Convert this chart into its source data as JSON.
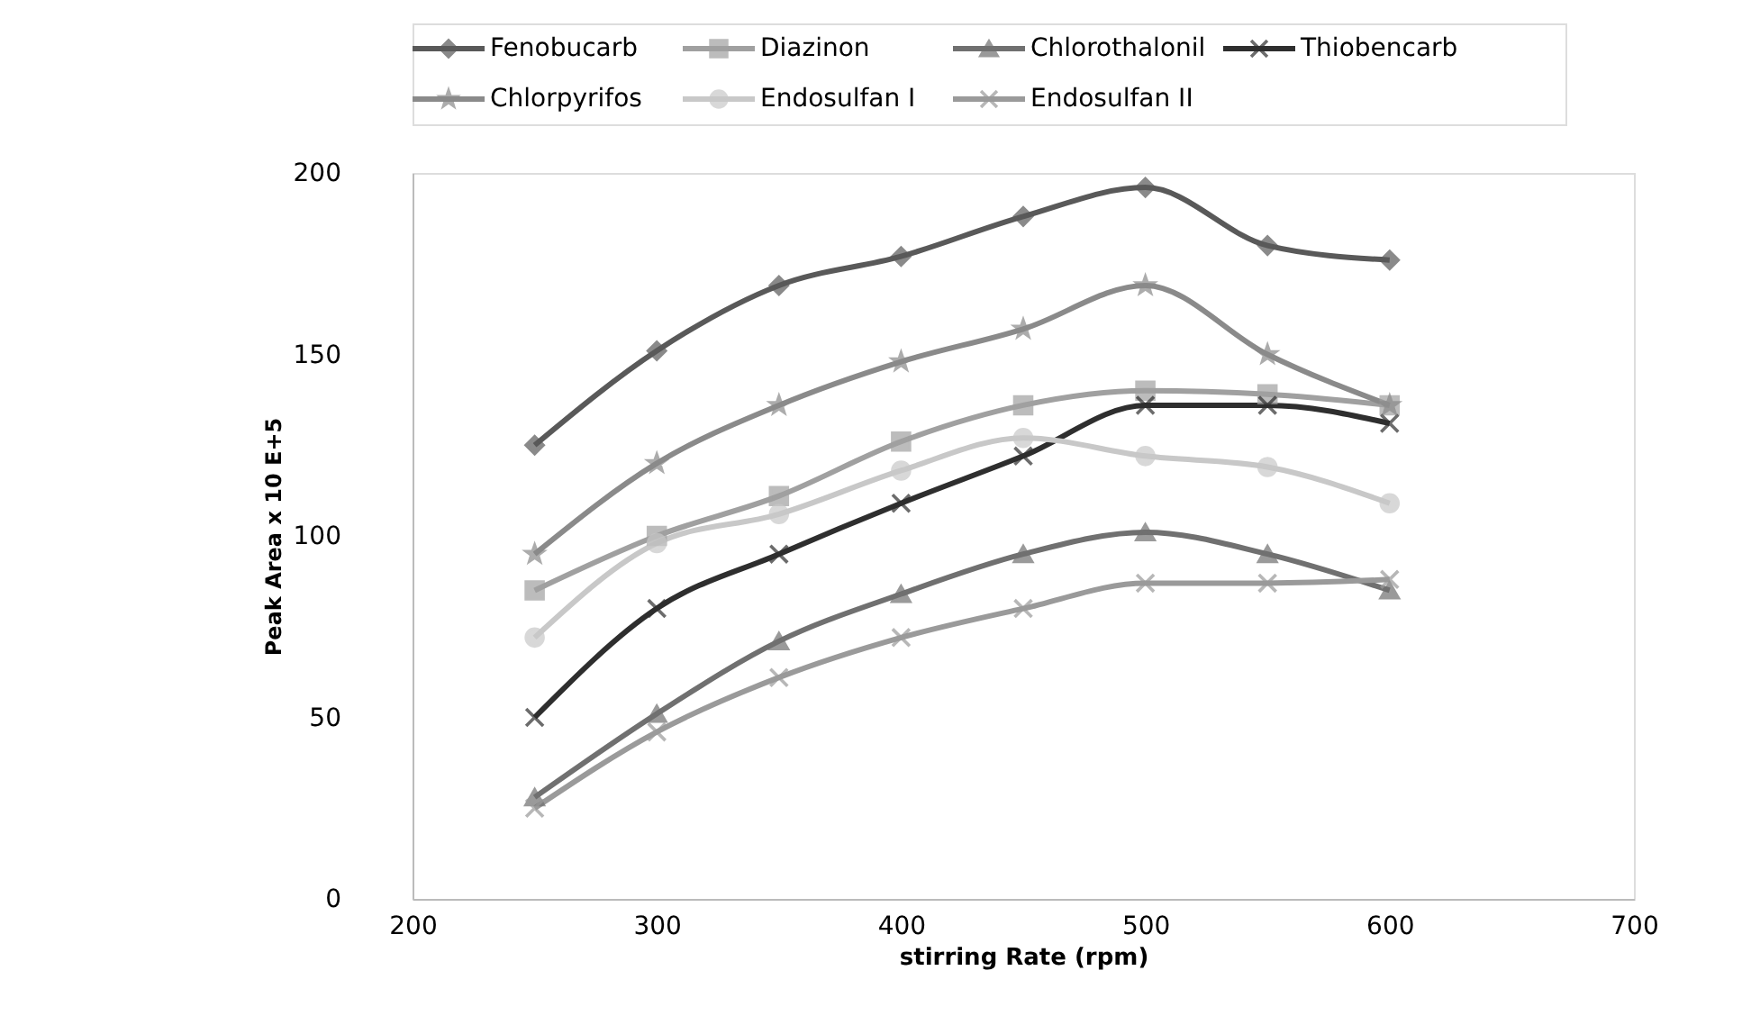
{
  "chart_data": {
    "type": "line",
    "xlabel": "stirring Rate (rpm)",
    "ylabel": "Peak Area x 10 E+5",
    "x": [
      250,
      300,
      350,
      400,
      450,
      500,
      550,
      600
    ],
    "xlim": [
      200,
      700
    ],
    "xticks": [
      200,
      300,
      400,
      500,
      600,
      700
    ],
    "ylim": [
      0,
      200
    ],
    "yticks": [
      0,
      50,
      100,
      150,
      200
    ],
    "grid": false,
    "legend": "top",
    "line_style": "solid",
    "series": [
      {
        "name": "Fenobucarb",
        "color": "#595959",
        "marker": "diamond",
        "values": [
          125,
          151,
          169,
          177,
          188,
          196,
          180,
          176
        ]
      },
      {
        "name": "Diazinon",
        "color": "#a0a0a0",
        "marker": "square",
        "values": [
          85,
          100,
          111,
          126,
          136,
          140,
          139,
          136
        ]
      },
      {
        "name": "Chlorothalonil",
        "color": "#707070",
        "marker": "triangle",
        "values": [
          28,
          51,
          71,
          84,
          95,
          101,
          95,
          85
        ]
      },
      {
        "name": "Thiobencarb",
        "color": "#2e2e2e",
        "marker": "cross",
        "values": [
          50,
          80,
          95,
          109,
          122,
          136,
          136,
          131
        ]
      },
      {
        "name": "Chlorpyrifos",
        "color": "#8a8a8a",
        "marker": "star",
        "values": [
          95,
          120,
          136,
          148,
          157,
          169,
          150,
          136
        ]
      },
      {
        "name": "Endosulfan I",
        "color": "#c8c8c8",
        "marker": "circle",
        "values": [
          72,
          98,
          106,
          118,
          127,
          122,
          119,
          109
        ]
      },
      {
        "name": "Endosulfan II",
        "color": "#9a9a9a",
        "marker": "cross",
        "values": [
          25,
          46,
          61,
          72,
          80,
          87,
          87,
          88
        ]
      }
    ]
  }
}
